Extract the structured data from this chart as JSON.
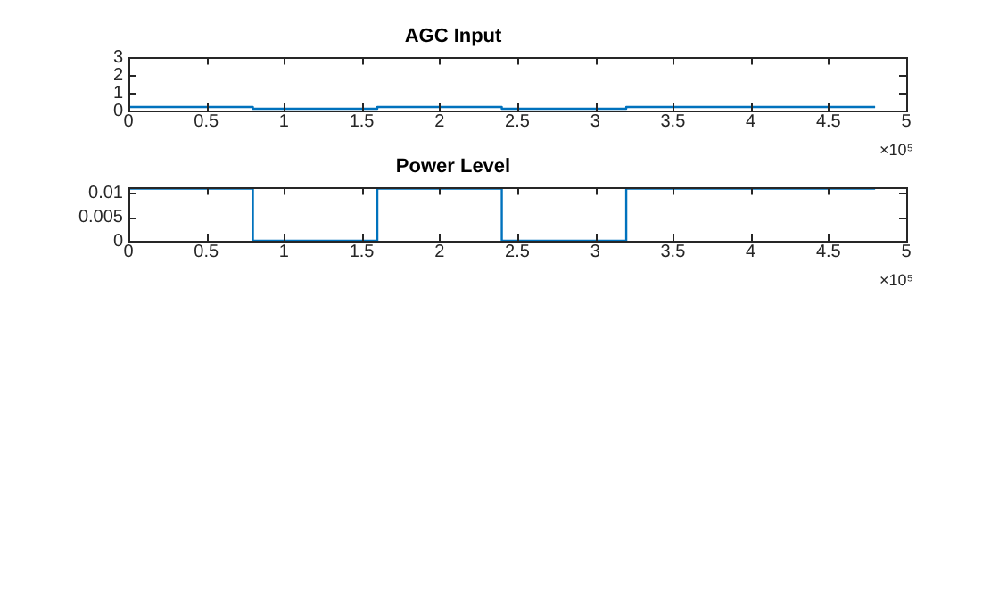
{
  "chart_data": [
    {
      "type": "step",
      "title": "AGC Input",
      "x": [
        0,
        0.8,
        1.6,
        2.4,
        3.2,
        4.0,
        4.8
      ],
      "series": [
        {
          "color": "#0072bd",
          "values": [
            0.1,
            0.2,
            0.1,
            0.2,
            0.1,
            0.2,
            0.2
          ]
        }
      ],
      "xlim": [
        0,
        5
      ],
      "xticks": [
        0,
        0.5,
        1,
        1.5,
        2,
        2.5,
        3,
        3.5,
        4,
        4.5,
        5
      ],
      "ylim": [
        0,
        3
      ],
      "yticks": [
        0,
        1,
        2,
        3
      ],
      "grid": false,
      "legend": false,
      "annotations": [
        "×10⁵"
      ]
    },
    {
      "type": "step",
      "title": "Power Level",
      "x": [
        0,
        0.8,
        1.6,
        2.4,
        3.2,
        4.0,
        4.8
      ],
      "series": [
        {
          "color": "#0072bd",
          "values": [
            0,
            0.011,
            0,
            0.011,
            0,
            0.011,
            0.011
          ]
        }
      ],
      "xlim": [
        0,
        5
      ],
      "xticks": [
        0,
        0.5,
        1,
        1.5,
        2,
        2.5,
        3,
        3.5,
        4,
        4.5,
        5
      ],
      "ylim": [
        0,
        0.0112
      ],
      "yticks": [
        0,
        0.005,
        0.01
      ],
      "grid": false,
      "legend": false,
      "annotations": [
        "×10⁵"
      ]
    }
  ]
}
